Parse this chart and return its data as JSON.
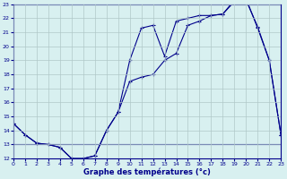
{
  "xlabel": "Graphe des températures (°c)",
  "x_values": [
    0,
    1,
    2,
    3,
    4,
    5,
    6,
    7,
    8,
    9,
    10,
    11,
    12,
    13,
    14,
    15,
    16,
    17,
    18,
    19,
    20,
    21,
    22,
    23
  ],
  "line1": [
    14.5,
    13.7,
    13.1,
    13.0,
    12.8,
    12.0,
    12.0,
    12.2,
    14.0,
    15.3,
    17.5,
    17.8,
    18.0,
    19.0,
    19.5,
    21.5,
    21.8,
    22.2,
    22.3,
    23.2,
    23.3,
    21.4,
    19.0,
    13.7
  ],
  "line2": [
    14.5,
    13.7,
    13.1,
    13.0,
    12.8,
    12.0,
    12.0,
    12.2,
    14.0,
    15.3,
    19.0,
    21.3,
    21.5,
    19.3,
    21.8,
    22.0,
    22.2,
    22.2,
    22.3,
    23.3,
    23.4,
    21.3,
    19.0,
    13.7
  ],
  "line3": [
    13.0,
    13.0,
    13.0,
    13.0,
    13.0,
    13.0,
    13.0,
    13.0,
    13.0,
    13.0,
    13.0,
    13.0,
    13.0,
    13.0,
    13.0,
    13.0,
    13.0,
    13.0,
    13.0,
    13.0,
    13.0,
    13.0,
    13.0,
    13.0
  ],
  "line_color": "#00008B",
  "background_color": "#D8F0F0",
  "grid_color": "#B0C8C8",
  "ylim": [
    12,
    23
  ],
  "xlim": [
    0,
    23
  ],
  "yticks": [
    12,
    13,
    14,
    15,
    16,
    17,
    18,
    19,
    20,
    21,
    22,
    23
  ],
  "xticks": [
    0,
    1,
    2,
    3,
    4,
    5,
    6,
    7,
    8,
    9,
    10,
    11,
    12,
    13,
    14,
    15,
    16,
    17,
    18,
    19,
    20,
    21,
    22,
    23
  ]
}
